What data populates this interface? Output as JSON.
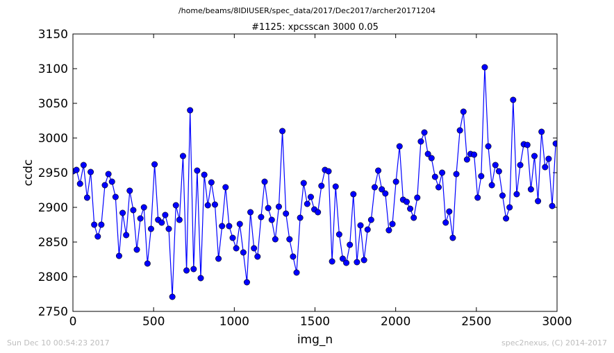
{
  "header": {
    "path": "/home/beams/8IDIUSER/spec_data/2017/Dec2017/archer20171204"
  },
  "footer": {
    "timestamp": "Sun Dec 10 00:54:23 2017",
    "credit": "spec2nexus, (C) 2014-2017"
  },
  "colors": {
    "series": "#0000ff",
    "footer_text": "#bdbdbd"
  },
  "chart_data": {
    "type": "line",
    "title": "#1125: xpcsscan 3000 0.05",
    "xlabel": "img_n",
    "ylabel": "ccdc",
    "xlim": [
      0,
      3000
    ],
    "ylim": [
      2750,
      3150
    ],
    "xticks": [
      0,
      500,
      1000,
      1500,
      2000,
      2500,
      3000
    ],
    "yticks": [
      2750,
      2800,
      2850,
      2900,
      2950,
      3000,
      3050,
      3100,
      3150
    ],
    "grid": false,
    "markers": "circle",
    "series": [
      {
        "x": [
          0,
          22,
          44,
          66,
          88,
          110,
          132,
          154,
          176,
          198,
          220,
          242,
          264,
          286,
          308,
          330,
          352,
          374,
          396,
          418,
          440,
          462,
          484,
          506,
          528,
          550,
          572,
          594,
          616,
          638,
          660,
          682,
          704,
          726,
          748,
          770,
          792,
          814,
          836,
          858,
          880,
          902,
          924,
          946,
          968,
          990,
          1012,
          1034,
          1056,
          1078,
          1100,
          1122,
          1144,
          1166,
          1188,
          1210,
          1232,
          1254,
          1276,
          1298,
          1320,
          1342,
          1364,
          1386,
          1408,
          1430,
          1452,
          1474,
          1496,
          1518,
          1540,
          1562,
          1584,
          1606,
          1628,
          1650,
          1672,
          1694,
          1716,
          1738,
          1760,
          1782,
          1804,
          1826,
          1848,
          1870,
          1892,
          1914,
          1936,
          1958,
          1980,
          2002,
          2024,
          2046,
          2068,
          2090,
          2112,
          2134,
          2156,
          2178,
          2200,
          2222,
          2244,
          2266,
          2288,
          2310,
          2332,
          2354,
          2376,
          2398,
          2420,
          2442,
          2464,
          2486,
          2508,
          2530,
          2552,
          2574,
          2596,
          2618,
          2640,
          2662,
          2684,
          2706,
          2728,
          2750,
          2772,
          2794,
          2816,
          2838,
          2860,
          2882,
          2904,
          2926,
          2948,
          2970,
          2992
        ],
        "y": [
          2952,
          2954,
          2934,
          2961,
          2914,
          2951,
          2875,
          2858,
          2875,
          2932,
          2948,
          2937,
          2915,
          2830,
          2892,
          2860,
          2924,
          2896,
          2839,
          2884,
          2900,
          2819,
          2869,
          2962,
          2882,
          2878,
          2889,
          2869,
          2771,
          2903,
          2882,
          2974,
          2809,
          3040,
          2811,
          2953,
          2798,
          2947,
          2903,
          2936,
          2904,
          2826,
          2873,
          2929,
          2873,
          2856,
          2841,
          2876,
          2835,
          2792,
          2893,
          2841,
          2829,
          2886,
          2937,
          2899,
          2882,
          2854,
          2901,
          3010,
          2891,
          2854,
          2829,
          2806,
          2885,
          2935,
          2905,
          2915,
          2897,
          2893,
          2931,
          2954,
          2952,
          2822,
          2930,
          2861,
          2826,
          2820,
          2846,
          2919,
          2821,
          2874,
          2824,
          2868,
          2882,
          2929,
          2953,
          2926,
          2920,
          2867,
          2876,
          2937,
          2988,
          2911,
          2908,
          2898,
          2885,
          2914,
          2995,
          3008,
          2977,
          2971,
          2944,
          2929,
          2950,
          2878,
          2894,
          2856,
          2948,
          3011,
          3038,
          2969,
          2977,
          2976,
          2914,
          2945,
          3102,
          2988,
          2932,
          2961,
          2952,
          2917,
          2884,
          2900,
          3055,
          2919,
          2961,
          2991,
          2990,
          2926,
          2974,
          2909,
          3009,
          2958,
          2970,
          2902,
          2992
        ]
      }
    ]
  }
}
